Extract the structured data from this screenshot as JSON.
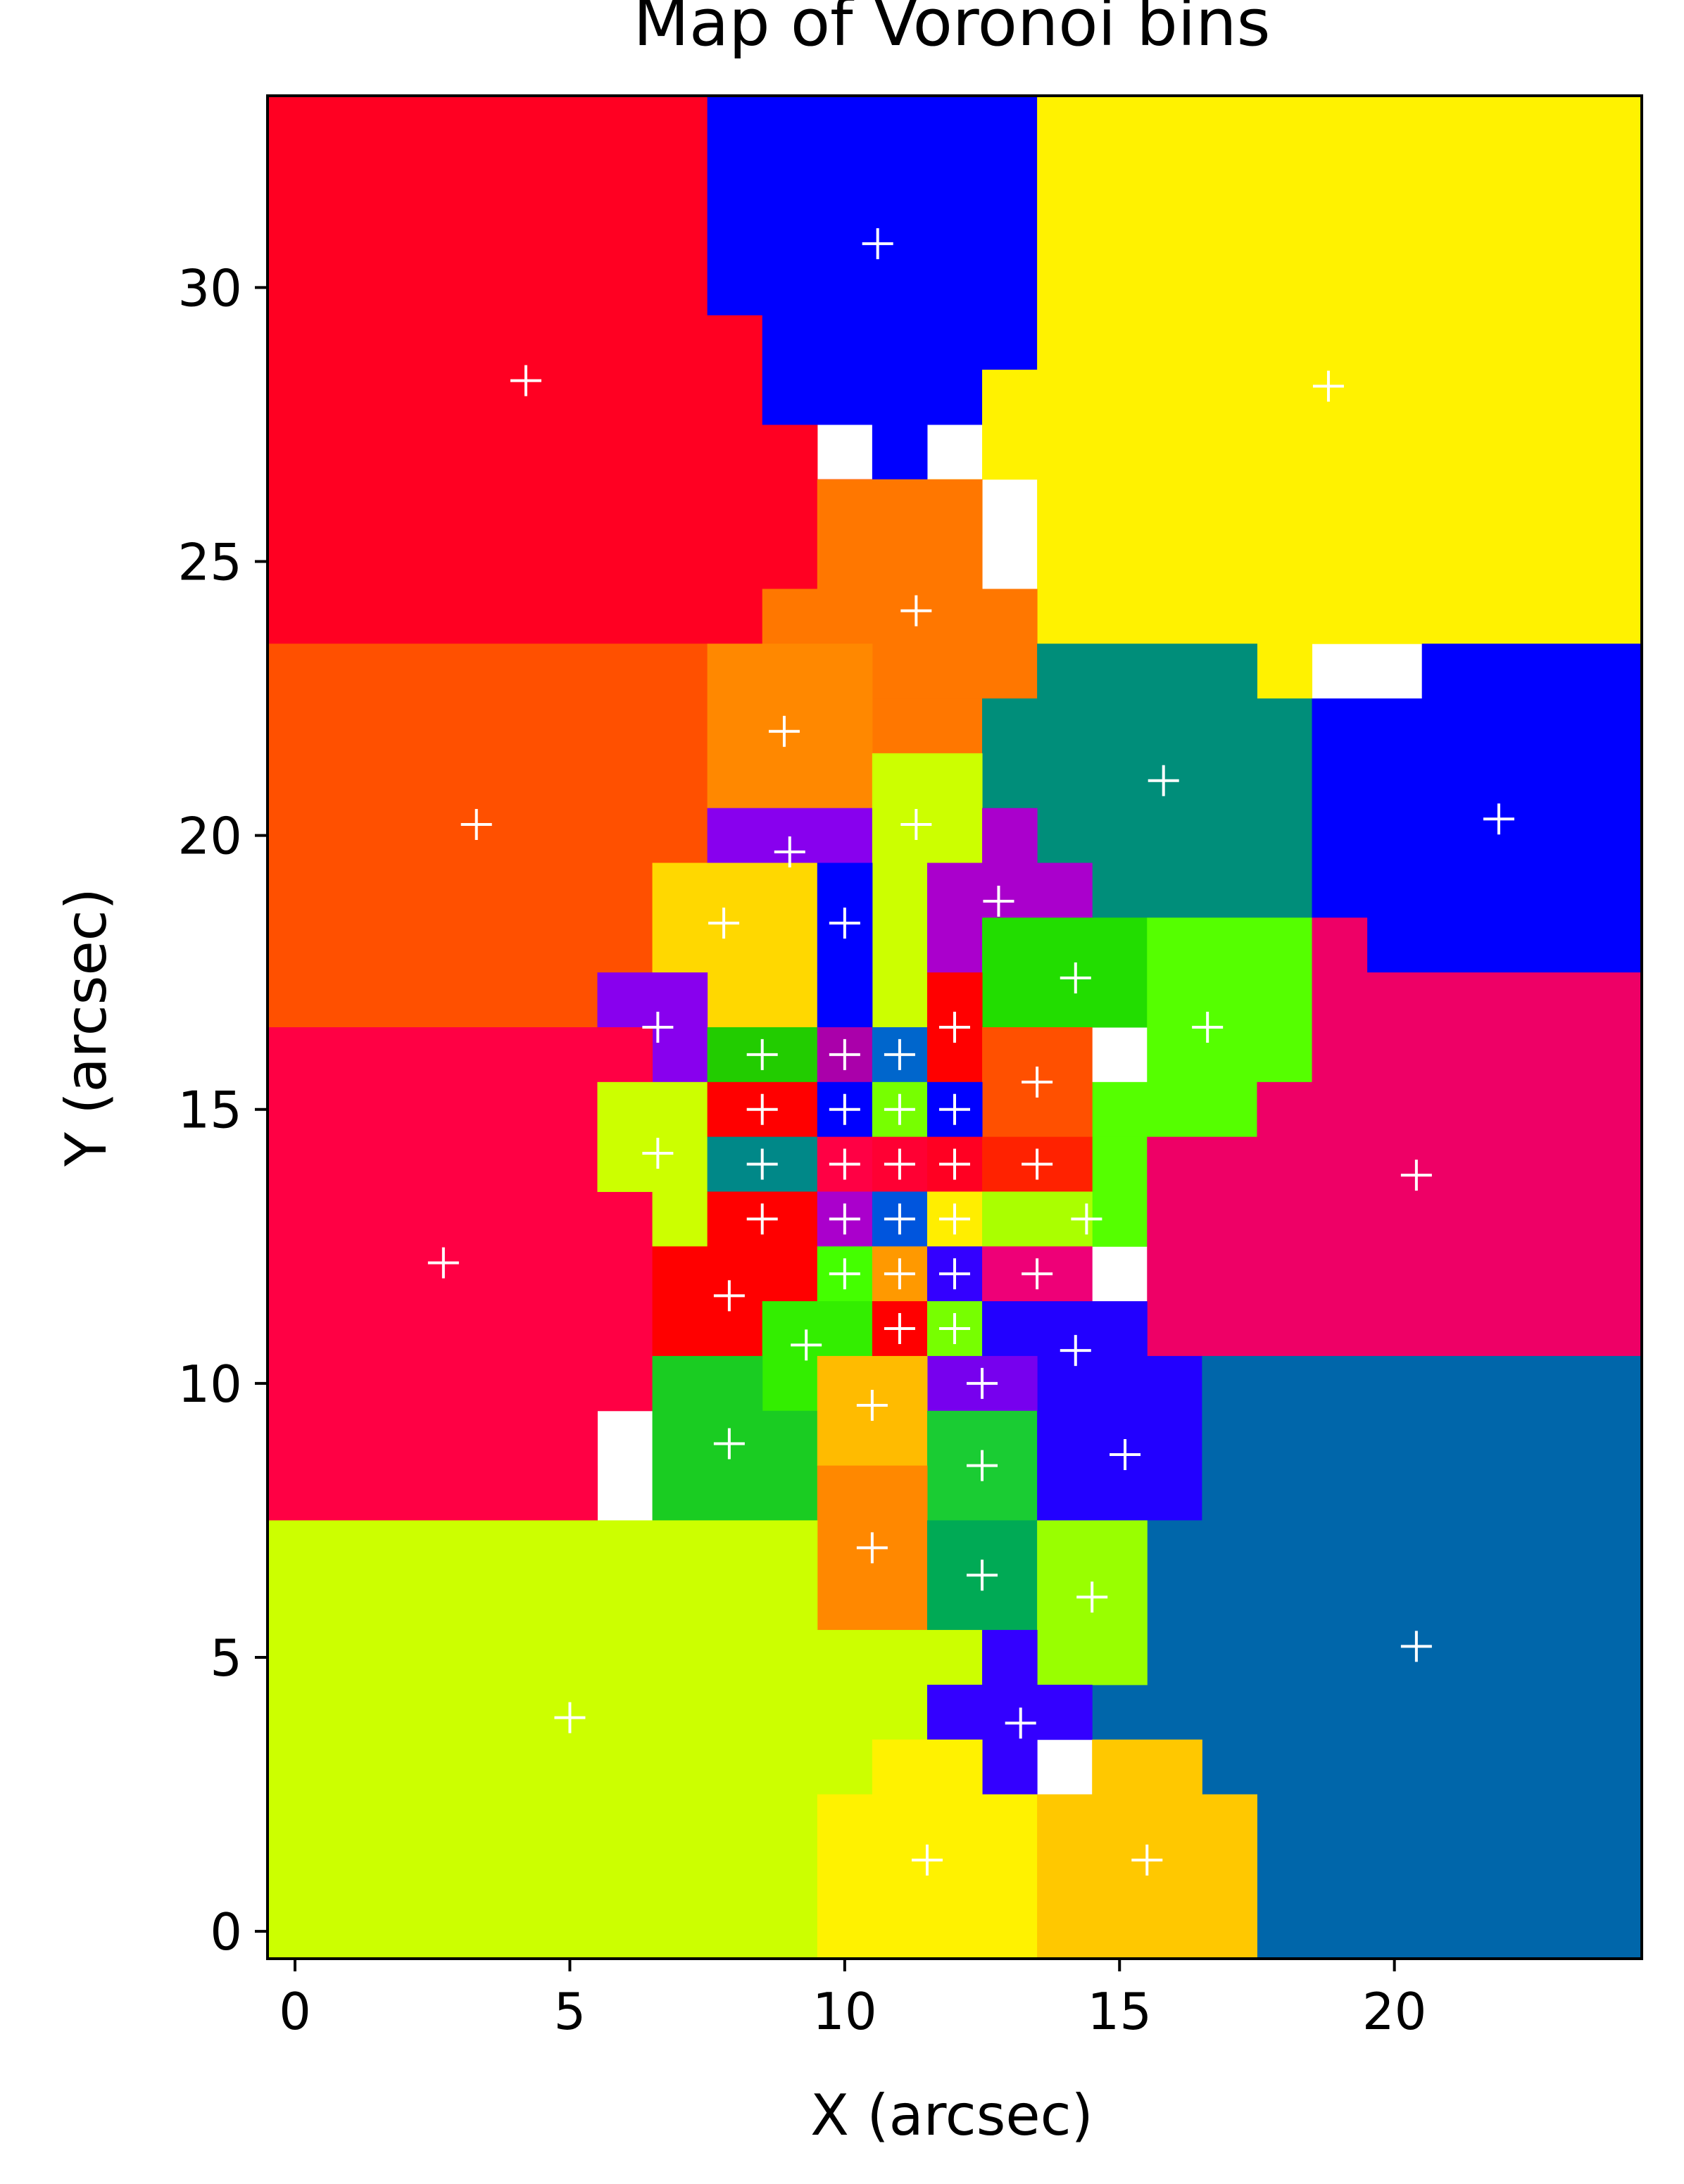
{
  "chart_data": {
    "type": "heatmap",
    "title": "Map of Voronoi bins",
    "xlabel": "X (arcsec)",
    "ylabel": "Y (arcsec)",
    "xlim": [
      -0.5,
      24.5
    ],
    "ylim": [
      -0.5,
      33.5
    ],
    "xticks": [
      0,
      5,
      10,
      15,
      20
    ],
    "yticks": [
      0,
      5,
      10,
      15,
      20,
      25,
      30
    ],
    "pixel_size_arcsec": 1,
    "grid": false,
    "bins": [
      {
        "id": "b01",
        "color": "#FF0022",
        "centroid": [
          4.2,
          28.3
        ],
        "cells": [
          [
            -0.5,
            23.5,
            9.5,
            33.5
          ],
          [
            9.5,
            23.5,
            10.5,
            26.5
          ],
          [
            9.5,
            26.5,
            8.5,
            33.5
          ],
          [
            8.5,
            26.5,
            7.5,
            33.5
          ],
          [
            10.5,
            25.5,
            8.5,
            26.5
          ]
        ]
      },
      {
        "id": "b02",
        "color": "#0000FF",
        "centroid": [
          10.6,
          30.8
        ],
        "cells": [
          [
            7.5,
            29.5,
            13.5,
            33.5
          ],
          [
            8.5,
            27.5,
            12.5,
            29.5
          ],
          [
            10.5,
            26.5,
            11.5,
            27.5
          ],
          [
            12.5,
            28.5,
            13.5,
            29.5
          ]
        ]
      },
      {
        "id": "b03",
        "color": "#FFF200",
        "centroid": [
          18.8,
          28.2
        ],
        "cells": [
          [
            13.5,
            23.5,
            24.5,
            33.5
          ],
          [
            12.5,
            26.5,
            13.5,
            28.5
          ],
          [
            11.5,
            25.5,
            12.5,
            26.5
          ],
          [
            17.5,
            21.5,
            18.5,
            23.5
          ]
        ]
      },
      {
        "id": "b04",
        "color": "#FF7700",
        "centroid": [
          11.3,
          24.1
        ],
        "cells": [
          [
            9.5,
            24.5,
            12.5,
            26.5
          ],
          [
            8.5,
            22.5,
            13.5,
            24.5
          ],
          [
            10.5,
            21.5,
            12.5,
            22.5
          ]
        ]
      },
      {
        "id": "b05",
        "color": "#FF5000",
        "centroid": [
          3.3,
          20.2
        ],
        "cells": [
          [
            -0.5,
            16.5,
            7.5,
            23.5
          ]
        ]
      },
      {
        "id": "b06",
        "color": "#FF8800",
        "centroid": [
          8.9,
          21.9
        ],
        "cells": [
          [
            7.5,
            20.5,
            10.5,
            23.5
          ]
        ]
      },
      {
        "id": "b07",
        "color": "#008E7A",
        "centroid": [
          15.8,
          21.0
        ],
        "cells": [
          [
            12.5,
            19.5,
            18.5,
            22.5
          ],
          [
            13.5,
            22.5,
            17.5,
            23.5
          ],
          [
            13.5,
            18.5,
            18.5,
            19.5
          ]
        ]
      },
      {
        "id": "b08",
        "color": "#0000FF",
        "centroid": [
          21.9,
          20.3
        ],
        "cells": [
          [
            18.5,
            18.5,
            24.5,
            22.5
          ],
          [
            20.5,
            22.5,
            24.5,
            23.5
          ],
          [
            19.5,
            17.5,
            24.5,
            18.5
          ]
        ]
      },
      {
        "id": "b09",
        "color": "#8800EE",
        "centroid": [
          9.0,
          19.7
        ],
        "cells": [
          [
            7.5,
            19.5,
            10.5,
            20.5
          ],
          [
            8.5,
            18.5,
            9.5,
            19.5
          ]
        ]
      },
      {
        "id": "b10",
        "color": "#CCFF00",
        "centroid": [
          11.3,
          20.2
        ],
        "cells": [
          [
            10.5,
            18.5,
            12.5,
            21.5
          ],
          [
            10.5,
            15.5,
            11.5,
            18.5
          ]
        ]
      },
      {
        "id": "b11",
        "color": "#AA00CC",
        "centroid": [
          12.8,
          18.8
        ],
        "cells": [
          [
            11.5,
            17.5,
            14.5,
            19.5
          ],
          [
            12.5,
            19.5,
            13.5,
            20.5
          ]
        ]
      },
      {
        "id": "b12",
        "color": "#FFD800",
        "centroid": [
          7.8,
          18.4
        ],
        "cells": [
          [
            6.5,
            17.5,
            9.5,
            19.5
          ],
          [
            7.5,
            16.5,
            9.5,
            17.5
          ]
        ]
      },
      {
        "id": "b13",
        "color": "#0000FF",
        "centroid": [
          10.0,
          18.4
        ],
        "cells": [
          [
            9.5,
            17.5,
            10.5,
            19.5
          ],
          [
            9.5,
            16.5,
            10.5,
            17.5
          ]
        ]
      },
      {
        "id": "b14",
        "color": "#22DD00",
        "centroid": [
          14.2,
          17.4
        ],
        "cells": [
          [
            12.5,
            16.5,
            15.5,
            18.5
          ]
        ]
      },
      {
        "id": "b15",
        "color": "#55FF00",
        "centroid": [
          16.6,
          16.5
        ],
        "cells": [
          [
            15.5,
            15.5,
            18.5,
            18.5
          ],
          [
            14.5,
            14.5,
            17.5,
            15.5
          ],
          [
            14.5,
            12.5,
            15.5,
            14.5
          ]
        ]
      },
      {
        "id": "b16",
        "color": "#EE0066",
        "centroid": [
          20.4,
          13.8
        ],
        "cells": [
          [
            15.5,
            10.5,
            24.5,
            14.5
          ],
          [
            17.5,
            14.5,
            24.5,
            15.5
          ],
          [
            18.5,
            15.5,
            24.5,
            17.5
          ],
          [
            18.5,
            17.5,
            19.5,
            18.5
          ]
        ]
      },
      {
        "id": "b17",
        "color": "#8800EE",
        "centroid": [
          6.6,
          16.5
        ],
        "cells": [
          [
            5.5,
            15.5,
            7.5,
            17.5
          ]
        ]
      },
      {
        "id": "b18",
        "color": "#FF0044",
        "centroid": [
          2.7,
          12.2
        ],
        "cells": [
          [
            -0.5,
            7.5,
            5.5,
            16.5
          ],
          [
            5.5,
            9.5,
            6.5,
            16.5
          ],
          [
            2.5,
            7.5,
            5.5,
            8.5
          ]
        ]
      },
      {
        "id": "b19",
        "color": "#CCFF00",
        "centroid": [
          6.6,
          14.2
        ],
        "cells": [
          [
            5.5,
            13.5,
            7.5,
            15.5
          ],
          [
            6.5,
            12.5,
            7.5,
            13.5
          ]
        ]
      },
      {
        "id": "b20",
        "color": "#22CC00",
        "centroid": [
          8.5,
          16.0
        ],
        "cells": [
          [
            7.5,
            15.5,
            9.5,
            16.5
          ]
        ]
      },
      {
        "id": "b21",
        "color": "#AA00AA",
        "centroid": [
          10.0,
          16.0
        ],
        "cells": [
          [
            9.5,
            15.5,
            10.5,
            16.5
          ]
        ]
      },
      {
        "id": "b22",
        "color": "#0066CC",
        "centroid": [
          11.0,
          16.0
        ],
        "cells": [
          [
            10.5,
            15.5,
            11.5,
            16.5
          ]
        ]
      },
      {
        "id": "b23",
        "color": "#FF0000",
        "centroid": [
          12.0,
          16.5
        ],
        "cells": [
          [
            11.5,
            15.5,
            12.5,
            17.5
          ]
        ]
      },
      {
        "id": "b24",
        "color": "#FF5000",
        "centroid": [
          13.5,
          15.5
        ],
        "cells": [
          [
            12.5,
            14.5,
            14.5,
            16.5
          ]
        ]
      },
      {
        "id": "b25",
        "color": "#FF0000",
        "centroid": [
          8.5,
          15.0
        ],
        "cells": [
          [
            7.5,
            14.5,
            9.5,
            15.5
          ]
        ]
      },
      {
        "id": "b26",
        "color": "#0000FF",
        "centroid": [
          10.0,
          15.0
        ],
        "cells": [
          [
            9.5,
            14.5,
            10.5,
            15.5
          ]
        ]
      },
      {
        "id": "b27",
        "color": "#77FF00",
        "centroid": [
          11.0,
          15.0
        ],
        "cells": [
          [
            10.5,
            14.5,
            11.5,
            15.5
          ]
        ]
      },
      {
        "id": "b28",
        "color": "#0000FF",
        "centroid": [
          12.0,
          15.0
        ],
        "cells": [
          [
            11.5,
            14.5,
            12.5,
            15.5
          ]
        ]
      },
      {
        "id": "b29",
        "color": "#008888",
        "centroid": [
          8.5,
          14.0
        ],
        "cells": [
          [
            7.5,
            13.5,
            9.5,
            14.5
          ]
        ]
      },
      {
        "id": "b30",
        "color": "#FF0044",
        "centroid": [
          10.0,
          14.0
        ],
        "cells": [
          [
            9.5,
            13.5,
            10.5,
            14.5
          ]
        ]
      },
      {
        "id": "b31",
        "color": "#FF0033",
        "centroid": [
          11.0,
          14.0
        ],
        "cells": [
          [
            10.5,
            13.5,
            11.5,
            14.5
          ]
        ]
      },
      {
        "id": "b32",
        "color": "#FF0022",
        "centroid": [
          12.0,
          14.0
        ],
        "cells": [
          [
            11.5,
            13.5,
            12.5,
            14.5
          ]
        ]
      },
      {
        "id": "b33",
        "color": "#FF2200",
        "centroid": [
          13.5,
          14.0
        ],
        "cells": [
          [
            12.5,
            13.5,
            14.5,
            14.5
          ]
        ]
      },
      {
        "id": "b34",
        "color": "#FF0000",
        "centroid": [
          8.5,
          13.0
        ],
        "cells": [
          [
            7.5,
            12.5,
            9.5,
            13.5
          ],
          [
            6.5,
            10.5,
            8.5,
            12.5
          ]
        ]
      },
      {
        "id": "b35",
        "color": "#AA00CC",
        "centroid": [
          10.0,
          13.0
        ],
        "cells": [
          [
            9.5,
            12.5,
            10.5,
            13.5
          ]
        ]
      },
      {
        "id": "b36",
        "color": "#0055DD",
        "centroid": [
          11.0,
          13.0
        ],
        "cells": [
          [
            10.5,
            12.5,
            11.5,
            13.5
          ]
        ]
      },
      {
        "id": "b37",
        "color": "#FFEE00",
        "centroid": [
          12.0,
          13.0
        ],
        "cells": [
          [
            11.5,
            12.5,
            12.5,
            13.5
          ]
        ]
      },
      {
        "id": "b38",
        "color": "#AAFF00",
        "centroid": [
          14.4,
          13.0
        ],
        "cells": [
          [
            12.5,
            12.5,
            14.5,
            13.5
          ]
        ]
      },
      {
        "id": "b39",
        "color": "#FF0000",
        "centroid": [
          7.9,
          11.6
        ],
        "cells": [
          [
            8.5,
            11.5,
            9.5,
            12.5
          ]
        ]
      },
      {
        "id": "b40",
        "color": "#44FF00",
        "centroid": [
          10.0,
          12.0
        ],
        "cells": [
          [
            9.5,
            11.5,
            10.5,
            12.5
          ]
        ]
      },
      {
        "id": "b41",
        "color": "#FF9900",
        "centroid": [
          11.0,
          12.0
        ],
        "cells": [
          [
            10.5,
            11.5,
            11.5,
            12.5
          ]
        ]
      },
      {
        "id": "b42",
        "color": "#3300FF",
        "centroid": [
          12.0,
          12.0
        ],
        "cells": [
          [
            11.5,
            11.5,
            12.5,
            12.5
          ]
        ]
      },
      {
        "id": "b43",
        "color": "#EE0077",
        "centroid": [
          13.5,
          12.0
        ],
        "cells": [
          [
            12.5,
            11.5,
            14.5,
            12.5
          ]
        ]
      },
      {
        "id": "b44",
        "color": "#33EE00",
        "centroid": [
          9.3,
          10.7
        ],
        "cells": [
          [
            8.5,
            10.5,
            10.5,
            11.5
          ],
          [
            8.5,
            9.5,
            9.5,
            10.5
          ]
        ]
      },
      {
        "id": "b45",
        "color": "#FF0000",
        "centroid": [
          11.0,
          11.0
        ],
        "cells": [
          [
            10.5,
            10.5,
            11.5,
            11.5
          ]
        ]
      },
      {
        "id": "b46",
        "color": "#77FF00",
        "centroid": [
          12.0,
          11.0
        ],
        "cells": [
          [
            11.5,
            10.5,
            12.5,
            11.5
          ]
        ]
      },
      {
        "id": "b47",
        "color": "#2200FF",
        "centroid": [
          14.2,
          10.6
        ],
        "cells": [
          [
            12.5,
            10.5,
            15.5,
            11.5
          ],
          [
            13.5,
            9.5,
            15.5,
            10.5
          ]
        ]
      },
      {
        "id": "b48",
        "color": "#7700EE",
        "centroid": [
          12.5,
          10.0
        ],
        "cells": [
          [
            11.5,
            9.5,
            13.5,
            10.5
          ]
        ]
      },
      {
        "id": "b49",
        "color": "#1ACC22",
        "centroid": [
          7.9,
          8.9
        ],
        "cells": [
          [
            6.5,
            7.5,
            8.5,
            10.5
          ],
          [
            8.5,
            7.5,
            9.5,
            9.5
          ]
        ]
      },
      {
        "id": "b50",
        "color": "#FFBB00",
        "centroid": [
          10.5,
          9.6
        ],
        "cells": [
          [
            9.5,
            8.5,
            11.5,
            10.5
          ]
        ]
      },
      {
        "id": "b51",
        "color": "#1ACC33",
        "centroid": [
          12.5,
          8.5
        ],
        "cells": [
          [
            11.5,
            7.5,
            13.5,
            9.5
          ]
        ]
      },
      {
        "id": "b52",
        "color": "#2200FF",
        "centroid": [
          15.1,
          8.7
        ],
        "cells": [
          [
            13.5,
            7.5,
            16.5,
            9.5
          ],
          [
            15.5,
            9.5,
            16.5,
            10.5
          ]
        ]
      },
      {
        "id": "b53",
        "color": "#0066AA",
        "centroid": [
          20.4,
          5.2
        ],
        "cells": [
          [
            16.5,
            -0.5,
            24.5,
            10.5
          ],
          [
            14.5,
            3.5,
            16.5,
            7.5
          ],
          [
            15.5,
            2.5,
            16.5,
            3.5
          ]
        ]
      },
      {
        "id": "b54",
        "color": "#FF8800",
        "centroid": [
          10.5,
          7.0
        ],
        "cells": [
          [
            9.5,
            5.5,
            11.5,
            8.5
          ]
        ]
      },
      {
        "id": "b55",
        "color": "#00AA55",
        "centroid": [
          12.5,
          6.5
        ],
        "cells": [
          [
            11.5,
            5.5,
            13.5,
            7.5
          ]
        ]
      },
      {
        "id": "b56",
        "color": "#99FF00",
        "centroid": [
          14.5,
          6.1
        ],
        "cells": [
          [
            13.5,
            4.5,
            15.5,
            7.5
          ]
        ]
      },
      {
        "id": "b57",
        "color": "#CCFF00",
        "centroid": [
          5.0,
          3.9
        ],
        "cells": [
          [
            -0.5,
            -0.5,
            9.5,
            7.5
          ],
          [
            9.5,
            2.5,
            10.5,
            5.5
          ],
          [
            10.5,
            4.5,
            12.5,
            5.5
          ],
          [
            10.5,
            3.5,
            11.5,
            4.5
          ]
        ]
      },
      {
        "id": "b58",
        "color": "#3300FF",
        "centroid": [
          13.2,
          3.8
        ],
        "cells": [
          [
            12.5,
            2.5,
            13.5,
            5.5
          ],
          [
            11.5,
            3.5,
            14.5,
            4.5
          ]
        ]
      },
      {
        "id": "b59",
        "color": "#FFF200",
        "centroid": [
          11.5,
          1.3
        ],
        "cells": [
          [
            9.5,
            -0.5,
            13.5,
            2.5
          ],
          [
            10.5,
            2.5,
            12.5,
            3.5
          ]
        ]
      },
      {
        "id": "b60",
        "color": "#FFC800",
        "centroid": [
          15.5,
          1.3
        ],
        "cells": [
          [
            13.5,
            -0.5,
            17.5,
            2.5
          ],
          [
            14.5,
            2.5,
            16.5,
            3.5
          ]
        ]
      }
    ]
  }
}
